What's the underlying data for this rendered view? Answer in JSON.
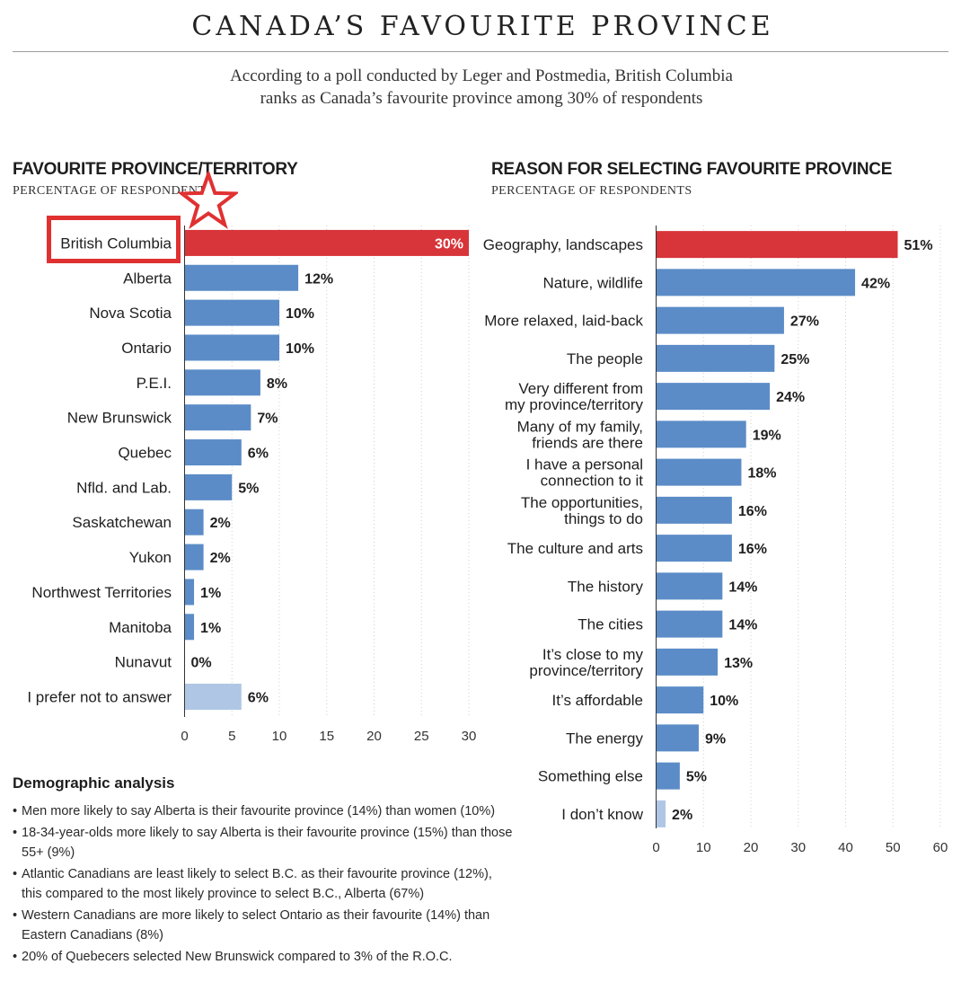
{
  "page": {
    "title": "CANADA’S FAVOURITE PROVINCE",
    "subtitle_line1": "According to a poll conducted by Leger and Postmedia, British Columbia",
    "subtitle_line2": "ranks as Canada’s favourite province among 30% of respondents"
  },
  "colors": {
    "highlight": "#d7353a",
    "bar": "#5b8cc7",
    "bar_light": "#afc6e5",
    "annotation": "#e03131"
  },
  "annotation": {
    "box_icon": "highlight-box-outline",
    "star_icon": "star-outline-icon"
  },
  "chart_data": [
    {
      "type": "bar",
      "orientation": "horizontal",
      "title": "FAVOURITE PROVINCE/TERRITORY",
      "subtitle": "PERCENTAGE OF RESPONDENTS",
      "categories": [
        "British Columbia",
        "Alberta",
        "Nova Scotia",
        "Ontario",
        "P.E.I.",
        "New Brunswick",
        "Quebec",
        "Nfld. and Lab.",
        "Saskatchewan",
        "Yukon",
        "Northwest Territories",
        "Manitoba",
        "Nunavut",
        "I prefer not to answer"
      ],
      "values": [
        30,
        12,
        10,
        10,
        8,
        7,
        6,
        5,
        2,
        2,
        1,
        1,
        0,
        6
      ],
      "value_labels": [
        "30%",
        "12%",
        "10%",
        "10%",
        "8%",
        "7%",
        "6%",
        "5%",
        "2%",
        "2%",
        "1%",
        "1%",
        "0%",
        "6%"
      ],
      "bar_style": [
        "highlight",
        "bar",
        "bar",
        "bar",
        "bar",
        "bar",
        "bar",
        "bar",
        "bar",
        "bar",
        "bar",
        "bar",
        "bar",
        "bar_light"
      ],
      "xlim": [
        0,
        30
      ],
      "xticks": [
        0,
        5,
        10,
        15,
        20,
        25,
        30
      ],
      "grid": true
    },
    {
      "type": "bar",
      "orientation": "horizontal",
      "title": "REASON FOR SELECTING FAVOURITE PROVINCE",
      "subtitle": "PERCENTAGE OF RESPONDENTS",
      "categories": [
        [
          "Geography, landscapes"
        ],
        [
          "Nature, wildlife"
        ],
        [
          "More relaxed, laid-back"
        ],
        [
          "The people"
        ],
        [
          "Very different from",
          "my province/territory"
        ],
        [
          "Many of my family,",
          "friends are there"
        ],
        [
          "I have a personal",
          "connection to it"
        ],
        [
          "The opportunities,",
          "things to do"
        ],
        [
          "The culture and arts"
        ],
        [
          "The history"
        ],
        [
          "The cities"
        ],
        [
          "It’s close to my",
          "province/territory"
        ],
        [
          "It’s affordable"
        ],
        [
          "The energy"
        ],
        [
          "Something else"
        ],
        [
          "I don’t know"
        ]
      ],
      "values": [
        51,
        42,
        27,
        25,
        24,
        19,
        18,
        16,
        16,
        14,
        14,
        13,
        10,
        9,
        5,
        2
      ],
      "value_labels": [
        "51%",
        "42%",
        "27%",
        "25%",
        "24%",
        "19%",
        "18%",
        "16%",
        "16%",
        "14%",
        "14%",
        "13%",
        "10%",
        "9%",
        "5%",
        "2%"
      ],
      "bar_style": [
        "highlight",
        "bar",
        "bar",
        "bar",
        "bar",
        "bar",
        "bar",
        "bar",
        "bar",
        "bar",
        "bar",
        "bar",
        "bar",
        "bar",
        "bar",
        "bar_light"
      ],
      "xlim": [
        0,
        60
      ],
      "xticks": [
        0,
        10,
        20,
        30,
        40,
        50,
        60
      ],
      "grid": true
    }
  ],
  "demographics": {
    "title": "Demographic analysis",
    "items": [
      "Men more likely to say Alberta is their favourite province (14%) than women (10%)",
      "18-34-year-olds more likely to say Alberta is their favourite province (15%) than those 55+ (9%)",
      "Atlantic Canadians are least likely to select B.C. as their favourite province (12%), this compared to the most likely province to select B.C., Alberta (67%)",
      "Western Canadians are more likely to select Ontario as their favourite (14%) than Eastern Canadians (8%)",
      "20% of Quebecers selected New Brunswick compared to 3% of the R.O.C."
    ]
  }
}
